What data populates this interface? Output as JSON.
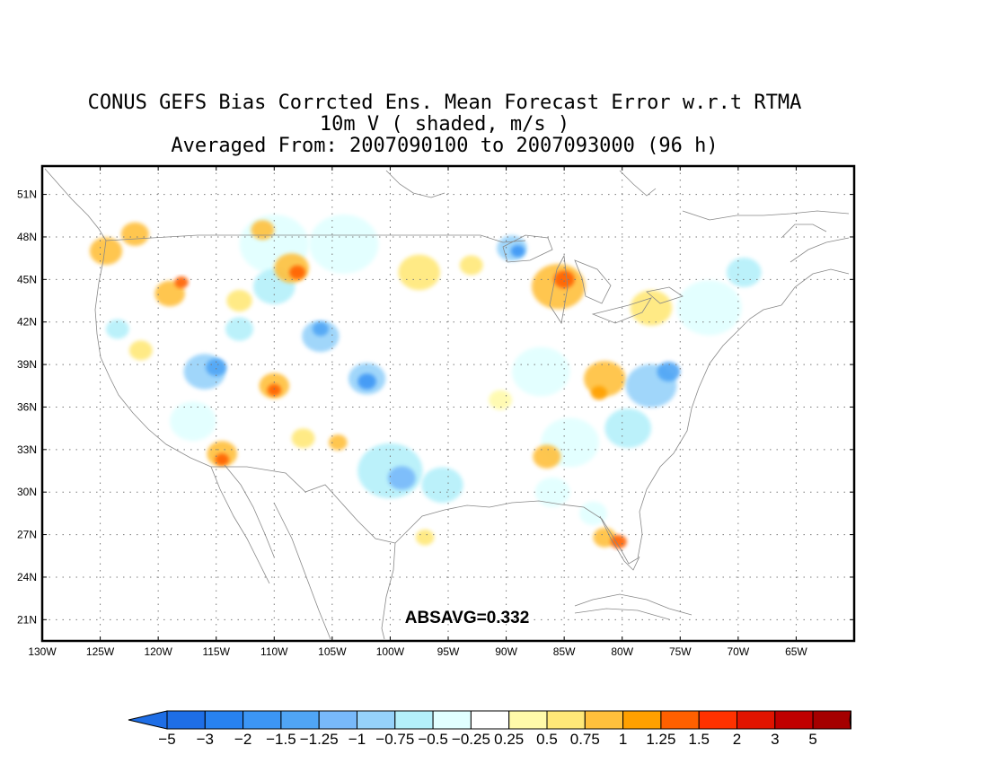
{
  "title": {
    "line1": "CONUS GEFS Bias Corrcted Ens. Mean Forecast Error w.r.t RTMA",
    "line2": "10m V ( shaded, m/s )",
    "line3": "Averaged From: 2007090100 to 2007093000 (96 h)"
  },
  "annotation": "ABSAVG=0.332",
  "map": {
    "lon_range": [
      -130,
      -60
    ],
    "lat_range": [
      19.5,
      53
    ],
    "lon_ticks": [
      {
        "value": -130,
        "label": "130W"
      },
      {
        "value": -125,
        "label": "125W"
      },
      {
        "value": -120,
        "label": "120W"
      },
      {
        "value": -115,
        "label": "115W"
      },
      {
        "value": -110,
        "label": "110W"
      },
      {
        "value": -105,
        "label": "105W"
      },
      {
        "value": -100,
        "label": "100W"
      },
      {
        "value": -95,
        "label": "95W"
      },
      {
        "value": -90,
        "label": "90W"
      },
      {
        "value": -85,
        "label": "85W"
      },
      {
        "value": -80,
        "label": "80W"
      },
      {
        "value": -75,
        "label": "75W"
      },
      {
        "value": -70,
        "label": "70W"
      },
      {
        "value": -65,
        "label": "65W"
      }
    ],
    "lat_ticks": [
      {
        "value": 51,
        "label": "51N"
      },
      {
        "value": 48,
        "label": "48N"
      },
      {
        "value": 45,
        "label": "45N"
      },
      {
        "value": 42,
        "label": "42N"
      },
      {
        "value": 39,
        "label": "39N"
      },
      {
        "value": 36,
        "label": "36N"
      },
      {
        "value": 33,
        "label": "33N"
      },
      {
        "value": 30,
        "label": "30N"
      },
      {
        "value": 27,
        "label": "27N"
      },
      {
        "value": 24,
        "label": "24N"
      },
      {
        "value": 21,
        "label": "21N"
      }
    ],
    "grid": "dotted",
    "blobs": [
      {
        "lon": -124.5,
        "lat": 47.0,
        "r": 1.4,
        "level": 0.75
      },
      {
        "lon": -122.0,
        "lat": 48.2,
        "r": 1.2,
        "level": 0.75
      },
      {
        "lon": -119.0,
        "lat": 44.0,
        "r": 1.3,
        "level": 0.75
      },
      {
        "lon": -118.0,
        "lat": 44.8,
        "r": 0.6,
        "level": 1.25
      },
      {
        "lon": -121.5,
        "lat": 40.0,
        "r": 1.0,
        "level": 0.5
      },
      {
        "lon": -113.0,
        "lat": 43.5,
        "r": 1.1,
        "level": 0.5
      },
      {
        "lon": -111.0,
        "lat": 48.5,
        "r": 1.0,
        "level": 0.75
      },
      {
        "lon": -108.5,
        "lat": 45.8,
        "r": 1.5,
        "level": 0.75
      },
      {
        "lon": -108.0,
        "lat": 45.5,
        "r": 0.7,
        "level": 1.25
      },
      {
        "lon": -110.0,
        "lat": 37.5,
        "r": 1.3,
        "level": 0.75
      },
      {
        "lon": -110.0,
        "lat": 37.2,
        "r": 0.6,
        "level": 1.25
      },
      {
        "lon": -114.5,
        "lat": 32.7,
        "r": 1.3,
        "level": 0.75
      },
      {
        "lon": -114.5,
        "lat": 32.3,
        "r": 0.6,
        "level": 1.25
      },
      {
        "lon": -107.5,
        "lat": 33.8,
        "r": 1.0,
        "level": 0.5
      },
      {
        "lon": -104.5,
        "lat": 33.5,
        "r": 0.8,
        "level": 0.75
      },
      {
        "lon": -97.5,
        "lat": 45.5,
        "r": 1.8,
        "level": 0.5
      },
      {
        "lon": -93.0,
        "lat": 46.0,
        "r": 1.0,
        "level": 0.5
      },
      {
        "lon": -85.5,
        "lat": 44.5,
        "r": 2.3,
        "level": 0.75
      },
      {
        "lon": -85.0,
        "lat": 45.0,
        "r": 0.9,
        "level": 1.25
      },
      {
        "lon": -81.5,
        "lat": 38.0,
        "r": 1.8,
        "level": 0.75
      },
      {
        "lon": -82.0,
        "lat": 37.0,
        "r": 0.7,
        "level": 1.0
      },
      {
        "lon": -77.5,
        "lat": 43.0,
        "r": 1.8,
        "level": 0.5
      },
      {
        "lon": -86.5,
        "lat": 32.5,
        "r": 1.2,
        "level": 0.75
      },
      {
        "lon": -81.5,
        "lat": 26.8,
        "r": 1.0,
        "level": 0.75
      },
      {
        "lon": -80.3,
        "lat": 26.5,
        "r": 0.7,
        "level": 1.25
      },
      {
        "lon": -97.0,
        "lat": 26.8,
        "r": 0.8,
        "level": 0.5
      },
      {
        "lon": -90.5,
        "lat": 36.5,
        "r": 1.0,
        "level": 0.25
      },
      {
        "lon": -123.5,
        "lat": 41.5,
        "r": 1.0,
        "level": -0.75
      },
      {
        "lon": -116.0,
        "lat": 38.5,
        "r": 1.8,
        "level": -1.0
      },
      {
        "lon": -115.0,
        "lat": 38.8,
        "r": 0.9,
        "level": -1.5
      },
      {
        "lon": -113.0,
        "lat": 41.5,
        "r": 1.2,
        "level": -0.5
      },
      {
        "lon": -110.0,
        "lat": 44.5,
        "r": 1.8,
        "level": -0.5
      },
      {
        "lon": -106.0,
        "lat": 41.0,
        "r": 1.6,
        "level": -1.0
      },
      {
        "lon": -106.0,
        "lat": 41.5,
        "r": 0.7,
        "level": -1.5
      },
      {
        "lon": -102.0,
        "lat": 38.0,
        "r": 1.6,
        "level": -1.0
      },
      {
        "lon": -102.0,
        "lat": 37.8,
        "r": 0.8,
        "level": -2.0
      },
      {
        "lon": -100.0,
        "lat": 31.5,
        "r": 2.8,
        "level": -0.75
      },
      {
        "lon": -99.0,
        "lat": 31.0,
        "r": 1.2,
        "level": -1.25
      },
      {
        "lon": -95.5,
        "lat": 30.5,
        "r": 1.8,
        "level": -0.5
      },
      {
        "lon": -89.5,
        "lat": 47.2,
        "r": 1.3,
        "level": -1.0
      },
      {
        "lon": -89.0,
        "lat": 47.0,
        "r": 0.6,
        "level": -2.0
      },
      {
        "lon": -77.5,
        "lat": 37.5,
        "r": 2.2,
        "level": -1.0
      },
      {
        "lon": -76.0,
        "lat": 38.5,
        "r": 1.0,
        "level": -1.5
      },
      {
        "lon": -79.5,
        "lat": 34.5,
        "r": 2.0,
        "level": -0.75
      },
      {
        "lon": -72.5,
        "lat": 43.0,
        "r": 2.8,
        "level": -0.25
      },
      {
        "lon": -69.5,
        "lat": 45.5,
        "r": 1.5,
        "level": -0.5
      },
      {
        "lon": -84.5,
        "lat": 33.5,
        "r": 2.5,
        "level": -0.25
      },
      {
        "lon": -87.0,
        "lat": 38.5,
        "r": 2.5,
        "level": -0.25
      },
      {
        "lon": -86.0,
        "lat": 30.0,
        "r": 1.5,
        "level": -0.25
      },
      {
        "lon": -110.0,
        "lat": 47.5,
        "r": 3.0,
        "level": -0.25
      },
      {
        "lon": -104.0,
        "lat": 47.5,
        "r": 3.0,
        "level": -0.25
      },
      {
        "lon": -117.0,
        "lat": 35.0,
        "r": 2.0,
        "level": -0.25
      },
      {
        "lon": -82.5,
        "lat": 28.5,
        "r": 1.2,
        "level": -0.25
      }
    ]
  },
  "colorbar": {
    "labels": [
      "−5",
      "−3",
      "−2",
      "−1.5",
      "−1.25",
      "−1",
      "−0.75",
      "−0.5",
      "−0.25",
      "0.25",
      "0.5",
      "0.75",
      "1",
      "1.25",
      "1.5",
      "2",
      "3",
      "5"
    ],
    "colors": [
      "#1e6ee6",
      "#2882f0",
      "#3c96f5",
      "#50a5f5",
      "#78b9fa",
      "#96d2fa",
      "#b4f0fa",
      "#e1ffff",
      "#ffffff",
      "#fffaaa",
      "#ffe878",
      "#ffc03c",
      "#ffa000",
      "#ff6000",
      "#ff3200",
      "#e11400",
      "#c00000",
      "#a50000"
    ],
    "under_color": "#1e6ee6",
    "over_color": "#a50000"
  }
}
